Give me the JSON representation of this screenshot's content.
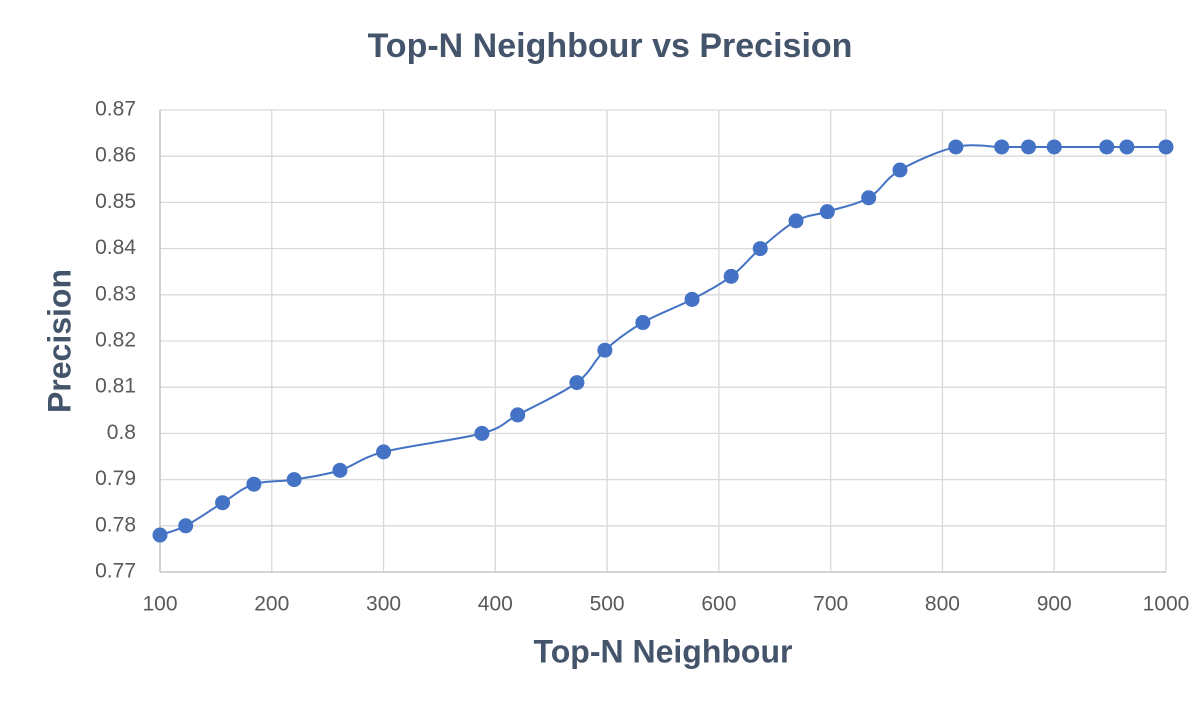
{
  "chart_data": {
    "type": "scatter-smooth",
    "title": "Top-N Neighbour vs Precision",
    "x_label": "Top-N Neighbour",
    "y_label": "Precision",
    "series": [
      {
        "color": "#4472c4",
        "x": [
          100,
          123,
          156,
          184,
          220,
          261,
          300,
          388,
          420,
          473,
          498,
          532,
          576,
          611,
          637,
          669,
          697,
          734,
          762,
          812,
          853,
          877,
          900,
          947,
          965,
          1000
        ],
        "values": [
          0.778,
          0.78,
          0.785,
          0.789,
          0.79,
          0.792,
          0.796,
          0.8,
          0.804,
          0.811,
          0.818,
          0.824,
          0.829,
          0.834,
          0.84,
          0.846,
          0.848,
          0.851,
          0.857,
          0.862,
          0.862,
          0.862,
          0.862,
          0.862,
          0.862,
          0.862
        ]
      }
    ],
    "xlim": [
      100,
      1000
    ],
    "xticks": [
      100,
      200,
      300,
      400,
      500,
      600,
      700,
      800,
      900,
      1000
    ],
    "ylim": [
      0.77,
      0.87
    ],
    "yticks": [
      0.77,
      0.78,
      0.79,
      0.8,
      0.81,
      0.82,
      0.83,
      0.84,
      0.85,
      0.86,
      0.87
    ],
    "grid": true
  }
}
